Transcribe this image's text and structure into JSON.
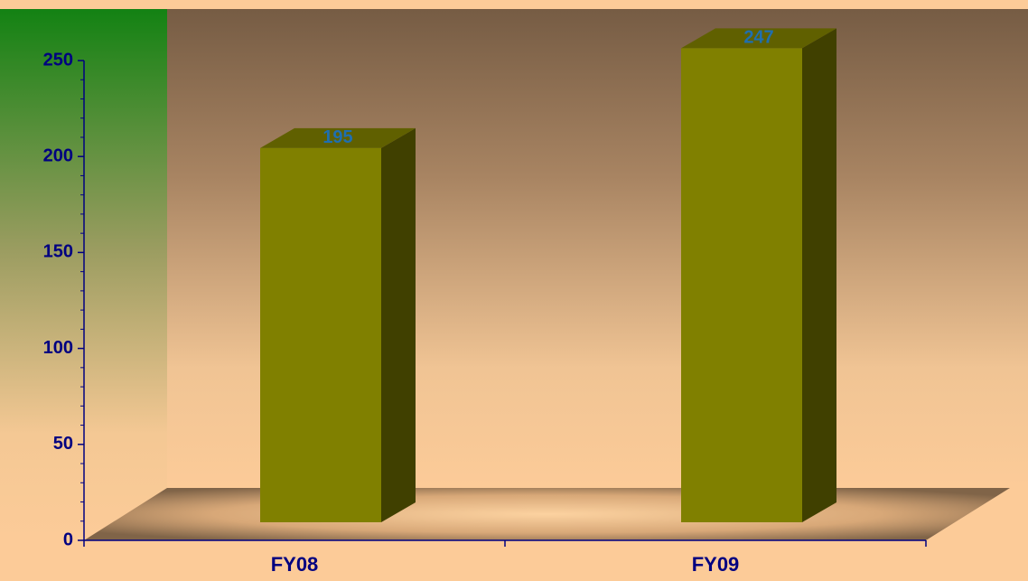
{
  "chart_data": {
    "type": "bar",
    "categories": [
      "FY08",
      "FY09"
    ],
    "values": [
      195,
      247
    ],
    "color": "#808000",
    "label_color": "#1f6fb0",
    "ylim": [
      0,
      250
    ],
    "yticks": [
      0,
      50,
      100,
      150,
      200,
      250
    ],
    "grid": false
  }
}
